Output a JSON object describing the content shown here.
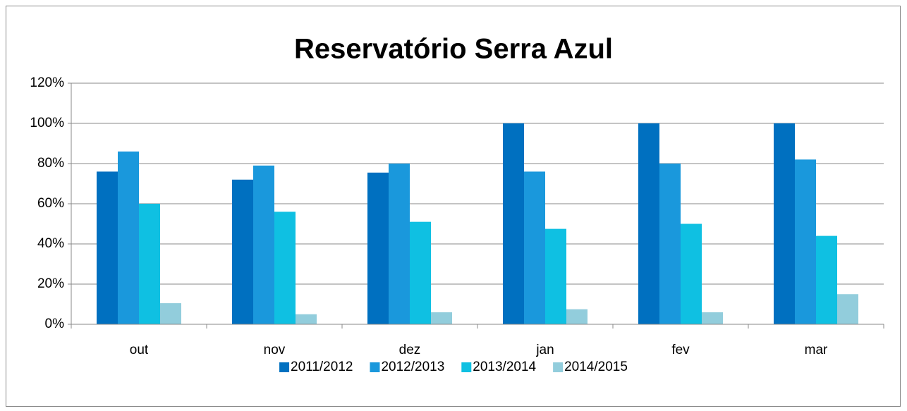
{
  "chart_data": {
    "type": "bar",
    "title": "Reservatório Serra Azul",
    "categories": [
      "out",
      "nov",
      "dez",
      "jan",
      "fev",
      "mar"
    ],
    "series": [
      {
        "name": "2011/2012",
        "color": "#0070c0",
        "values": [
          76,
          72,
          75.5,
          100,
          100,
          100
        ]
      },
      {
        "name": "2012/2013",
        "color": "#1a98dc",
        "values": [
          86,
          79,
          80,
          76,
          80,
          82
        ]
      },
      {
        "name": "2013/2014",
        "color": "#0fc0e2",
        "values": [
          60,
          56,
          51,
          47.5,
          50,
          44
        ]
      },
      {
        "name": "2014/2015",
        "color": "#92cddc",
        "values": [
          10.5,
          5,
          6,
          7.5,
          6,
          15
        ]
      }
    ],
    "ylim": [
      0,
      120
    ],
    "yticks": [
      {
        "value": 0,
        "label": "0%"
      },
      {
        "value": 20,
        "label": "20%"
      },
      {
        "value": 40,
        "label": "40%"
      },
      {
        "value": 60,
        "label": "60%"
      },
      {
        "value": 80,
        "label": "80%"
      },
      {
        "value": 100,
        "label": "100%"
      },
      {
        "value": 120,
        "label": "120%"
      }
    ],
    "grid": true,
    "legend": "bottom"
  }
}
